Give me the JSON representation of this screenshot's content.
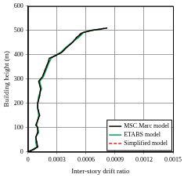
{
  "chart_data": {
    "type": "line",
    "x_label": "Inter-story drift ratio",
    "y_label": "Building height (m)",
    "xlim": [
      0,
      0.0015
    ],
    "xticks": [
      0,
      0.0003,
      0.0006,
      0.0009,
      0.0012,
      0.0015
    ],
    "ylim": [
      0,
      600
    ],
    "yticks": [
      0,
      100,
      200,
      300,
      400,
      500,
      600
    ],
    "grid": true,
    "legend": "lower right",
    "series": [
      {
        "name": "MSC.Marc model",
        "color": "#000000",
        "line_style": "solid",
        "marker": "none",
        "x": [
          0,
          6e-05,
          0.0001,
          9e-05,
          8e-05,
          0.0001,
          0.0001,
          8e-05,
          0.0001,
          0.00012,
          0.0001,
          0.0001,
          0.00012,
          0.00013,
          0.00011,
          0.00015,
          0.00018,
          0.00021,
          0.00022,
          0.00028,
          0.00035,
          0.0004,
          0.00046,
          0.0005,
          0.00056,
          0.00066,
          0.00082
        ],
        "values": [
          0,
          10,
          20,
          40,
          60,
          80,
          100,
          110,
          130,
          150,
          180,
          200,
          230,
          260,
          290,
          310,
          340,
          370,
          385,
          395,
          410,
          430,
          450,
          470,
          490,
          500,
          510
        ]
      },
      {
        "name": "ETABS model",
        "color": "#00a651",
        "line_style": "solid",
        "marker": "none",
        "x": [
          0,
          5e-05,
          9e-05,
          8e-05,
          8e-05,
          0.00011,
          0.0001,
          9e-05,
          0.0001,
          0.00011,
          0.0001,
          0.0001,
          0.00011,
          0.00014,
          0.00012,
          0.00016,
          0.00019,
          0.00022,
          0.00024,
          0.00027,
          0.00034,
          0.00039,
          0.00045,
          0.00052,
          0.00057,
          0.00064,
          0.00076
        ],
        "values": [
          0,
          10,
          20,
          40,
          60,
          80,
          100,
          110,
          130,
          150,
          180,
          200,
          230,
          260,
          290,
          310,
          340,
          370,
          385,
          395,
          410,
          430,
          450,
          470,
          490,
          500,
          505
        ]
      },
      {
        "name": "Simplified model",
        "color": "#e8202a",
        "line_style": "dashed",
        "marker": "none",
        "x": [
          0,
          6e-05,
          0.0001,
          9e-05,
          8e-05,
          0.0001,
          0.0001,
          9e-05,
          0.0001,
          0.00012,
          0.0001,
          0.0001,
          0.00012,
          0.00013,
          0.00012,
          0.00015,
          0.00018,
          0.00021,
          0.00023,
          0.00028,
          0.00035,
          0.0004,
          0.00046,
          0.0005,
          0.00055,
          0.00066,
          0.00081
        ],
        "values": [
          0,
          10,
          20,
          40,
          60,
          80,
          100,
          110,
          130,
          150,
          180,
          200,
          230,
          260,
          290,
          310,
          340,
          370,
          385,
          395,
          410,
          430,
          450,
          470,
          490,
          500,
          510
        ]
      }
    ]
  }
}
